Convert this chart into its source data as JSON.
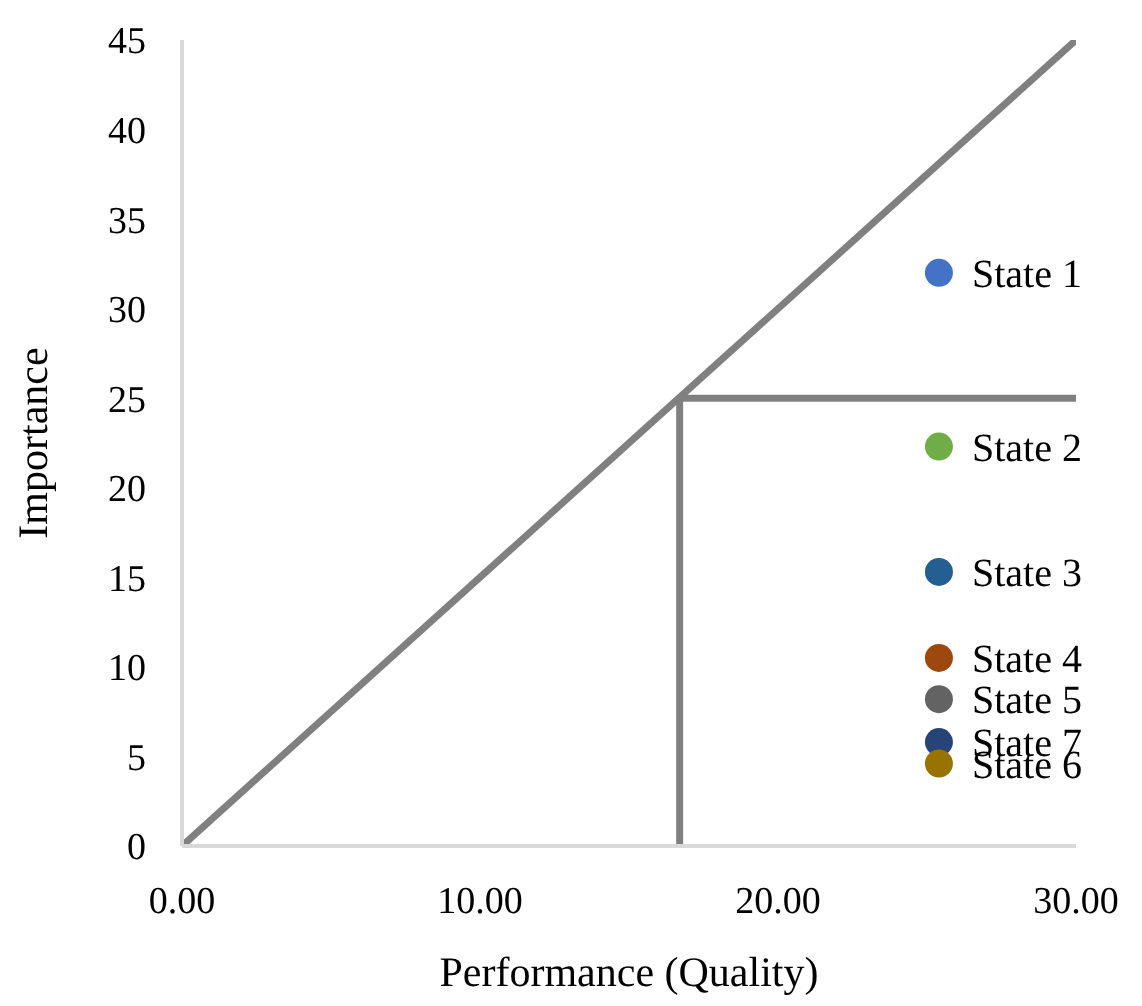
{
  "chart_data": {
    "type": "scatter",
    "xlabel": "Performance (Quality)",
    "ylabel": "Importance",
    "xlim": [
      0,
      30
    ],
    "xticks": [
      {
        "value": 0,
        "label": "0.00"
      },
      {
        "value": 10,
        "label": "10.00"
      },
      {
        "value": 20,
        "label": "20.00"
      },
      {
        "value": 30,
        "label": "30.00"
      }
    ],
    "ylim": [
      0,
      45
    ],
    "yticks": [
      0,
      5,
      10,
      15,
      20,
      25,
      30,
      35,
      40,
      45
    ],
    "grid": false,
    "legend": false,
    "marker": "circle",
    "series": [
      {
        "type": "line",
        "marker": "none",
        "color": "#808080",
        "x": [
          0,
          30
        ],
        "values": [
          0,
          45
        ]
      },
      {
        "type": "line",
        "marker": "none",
        "color": "#808080",
        "x": [
          16.7,
          16.7
        ],
        "values": [
          0,
          25
        ]
      },
      {
        "type": "line",
        "marker": "none",
        "color": "#808080",
        "x": [
          16.7,
          30
        ],
        "values": [
          25,
          25
        ]
      },
      {
        "name": "State 1",
        "color": "#4472c4",
        "x": [
          25.4
        ],
        "values": [
          32
        ]
      },
      {
        "name": "State 2",
        "color": "#70ad47",
        "x": [
          25.4
        ],
        "values": [
          22.3
        ]
      },
      {
        "name": "State 3",
        "color": "#255e91",
        "x": [
          25.4
        ],
        "values": [
          15.3
        ]
      },
      {
        "name": "State 4",
        "color": "#9e480e",
        "x": [
          25.4
        ],
        "values": [
          10.5
        ]
      },
      {
        "name": "State 5",
        "color": "#636363",
        "x": [
          25.4
        ],
        "values": [
          8.2
        ]
      },
      {
        "name": "State 7",
        "color": "#264478",
        "x": [
          25.4
        ],
        "values": [
          5.8
        ]
      },
      {
        "name": "State 6",
        "color": "#997300",
        "x": [
          25.4
        ],
        "values": [
          4.6
        ]
      }
    ]
  }
}
